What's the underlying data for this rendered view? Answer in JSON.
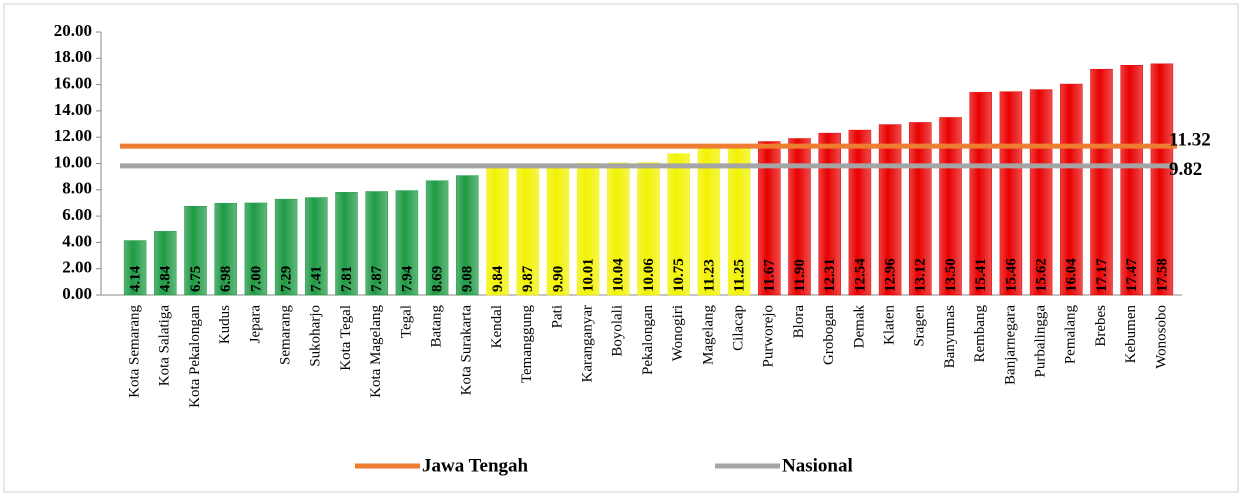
{
  "chart_data": {
    "type": "bar",
    "categories": [
      "Kota Semarang",
      "Kota Salatiga",
      "Kota Pekalongan",
      "Kudus",
      "Jepara",
      "Semarang",
      "Sukoharjo",
      "Kota Tegal",
      "Kota Magelang",
      "Tegal",
      "Batang",
      "Kota Surakarta",
      "Kendal",
      "Temanggung",
      "Pati",
      "Karanganyar",
      "Boyolali",
      "Pekalongan",
      "Wonogiri",
      "Magelang",
      "Cilacap",
      "Purworejo",
      "Blora",
      "Grobogan",
      "Demak",
      "Klaten",
      "Sragen",
      "Banyumas",
      "Rembang",
      "Banjarnegara",
      "Purbalingga",
      "Pemalang",
      "Brebes",
      "Kebumen",
      "Wonosobo"
    ],
    "values": [
      4.14,
      4.84,
      6.75,
      6.98,
      7.0,
      7.29,
      7.41,
      7.81,
      7.87,
      7.94,
      8.69,
      9.08,
      9.84,
      9.87,
      9.9,
      10.01,
      10.04,
      10.06,
      10.75,
      11.23,
      11.25,
      11.67,
      11.9,
      12.31,
      12.54,
      12.96,
      13.12,
      13.5,
      15.41,
      15.46,
      15.62,
      16.04,
      17.17,
      17.47,
      17.58
    ],
    "value_labels": [
      "4.14",
      "4.84",
      "6.75",
      "6.98",
      "7.00",
      "7.29",
      "7.41",
      "7.81",
      "7.87",
      "7.94",
      "8.69",
      "9.08",
      "9.84",
      "9.87",
      "9.90",
      "10.01",
      "10.04",
      "10.06",
      "10.75",
      "11.23",
      "11.25",
      "11.67",
      "11.90",
      "12.31",
      "12.54",
      "12.96",
      "13.12",
      "13.50",
      "15.41",
      "15.46",
      "15.62",
      "16.04",
      "17.17",
      "17.47",
      "17.58"
    ],
    "colors": [
      "#1e9a44",
      "#1e9a44",
      "#1e9a44",
      "#1e9a44",
      "#1e9a44",
      "#1e9a44",
      "#1e9a44",
      "#1e9a44",
      "#1e9a44",
      "#1e9a44",
      "#1e9a44",
      "#1e9a44",
      "#f2f200",
      "#f2f200",
      "#f2f200",
      "#f2f200",
      "#f2f200",
      "#f2f200",
      "#f2f200",
      "#f2f200",
      "#f2f200",
      "#e80000",
      "#e80000",
      "#e80000",
      "#e80000",
      "#e80000",
      "#e80000",
      "#e80000",
      "#e80000",
      "#e80000",
      "#e80000",
      "#e80000",
      "#e80000",
      "#e80000",
      "#e80000"
    ],
    "lines": [
      {
        "name": "Jawa Tengah",
        "value": 11.32,
        "color": "#ed7d31"
      },
      {
        "name": "Nasional",
        "value": 9.82,
        "color": "#a5a5a5"
      }
    ],
    "ylim": [
      0,
      20
    ],
    "yticks": [
      {
        "value": 0,
        "label": "0.00"
      },
      {
        "value": 2,
        "label": "2.00"
      },
      {
        "value": 4,
        "label": "4.00"
      },
      {
        "value": 6,
        "label": "6.00"
      },
      {
        "value": 8,
        "label": "8.00"
      },
      {
        "value": 10,
        "label": "10.00"
      },
      {
        "value": 12,
        "label": "12.00"
      },
      {
        "value": 14,
        "label": "14.00"
      },
      {
        "value": 16,
        "label": "16.00"
      },
      {
        "value": 18,
        "label": "18.00"
      },
      {
        "value": 20,
        "label": "20.00"
      }
    ]
  }
}
